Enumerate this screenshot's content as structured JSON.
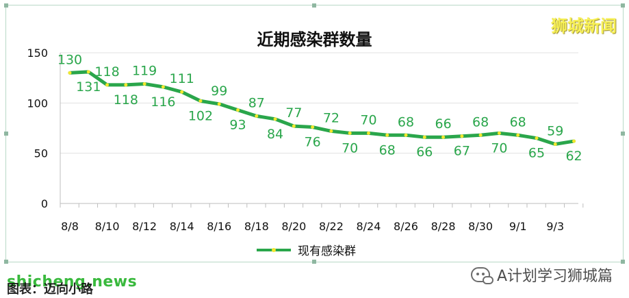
{
  "brand": {
    "text": "狮城新闻"
  },
  "chart_data": {
    "type": "line",
    "title": "近期感染群数量",
    "series": [
      {
        "name": "现有感染群",
        "color": "#2aa64b",
        "values": [
          130,
          131,
          118,
          118,
          119,
          116,
          111,
          102,
          99,
          93,
          87,
          84,
          77,
          76,
          72,
          70,
          70,
          68,
          68,
          66,
          66,
          67,
          68,
          70,
          68,
          65,
          59,
          62
        ]
      }
    ],
    "x": [
      "8/8",
      "8/9",
      "8/10",
      "8/11",
      "8/12",
      "8/13",
      "8/14",
      "8/15",
      "8/16",
      "8/17",
      "8/18",
      "8/19",
      "8/20",
      "8/21",
      "8/22",
      "8/23",
      "8/24",
      "8/25",
      "8/26",
      "8/27",
      "8/28",
      "8/29",
      "8/30",
      "8/31",
      "9/1",
      "9/2",
      "9/3",
      "9/4"
    ],
    "tick_labels": [
      "8/8",
      "8/10",
      "8/12",
      "8/14",
      "8/16",
      "8/18",
      "8/20",
      "8/22",
      "8/24",
      "8/26",
      "8/28",
      "8/30",
      "9/1",
      "9/3"
    ],
    "y_ticks": [
      0,
      50,
      100,
      150
    ],
    "ylim": [
      0,
      150
    ],
    "grid": true,
    "legend_position": "bottom-center",
    "label_position": [
      "above",
      "below",
      "above",
      "below",
      "above",
      "below",
      "above",
      "below",
      "above",
      "below",
      "above",
      "below",
      "above",
      "below",
      "above",
      "below",
      "above",
      "below",
      "above",
      "below",
      "above",
      "below",
      "above",
      "below",
      "above",
      "below",
      "above",
      "below"
    ]
  },
  "footer": {
    "watermark": "shicheng.news",
    "source": "图表：迈向小路",
    "wechat": "A计划学习狮城篇"
  }
}
